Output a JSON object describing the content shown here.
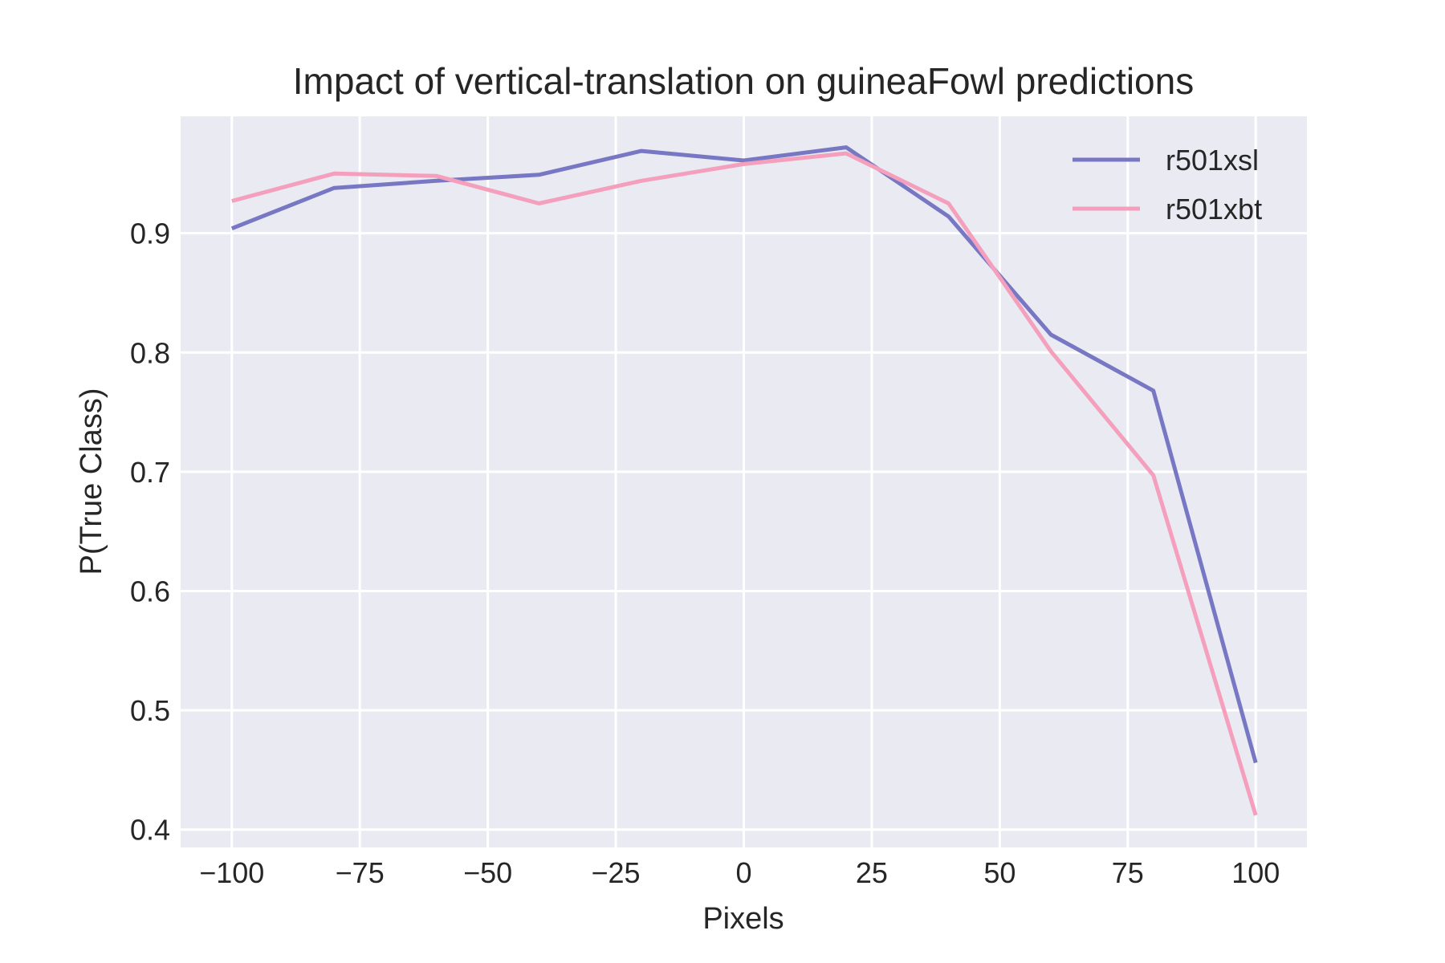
{
  "chart_data": {
    "type": "line",
    "title": "Impact of vertical-translation on guineaFowl predictions",
    "xlabel": "Pixels",
    "ylabel": "P(True Class)",
    "x": [
      -100,
      -80,
      -60,
      -40,
      -20,
      0,
      20,
      40,
      60,
      80,
      100
    ],
    "xlim": [
      -110,
      110
    ],
    "ylim": [
      0.385,
      0.998
    ],
    "xticks": [
      -100,
      -75,
      -50,
      -25,
      0,
      25,
      50,
      75,
      100
    ],
    "xtick_labels": [
      "−100",
      "−75",
      "−50",
      "−25",
      "0",
      "25",
      "50",
      "75",
      "100"
    ],
    "yticks": [
      0.4,
      0.5,
      0.6,
      0.7,
      0.8,
      0.9
    ],
    "ytick_labels": [
      "0.4",
      "0.5",
      "0.6",
      "0.7",
      "0.8",
      "0.9"
    ],
    "grid": true,
    "legend_position": "top-right",
    "background_color": "#eaeaf2",
    "grid_color": "#ffffff",
    "series": [
      {
        "name": "r501xsl",
        "color": "#7777c4",
        "values": [
          0.904,
          0.938,
          0.944,
          0.949,
          0.969,
          0.961,
          0.972,
          0.914,
          0.815,
          0.768,
          0.456
        ]
      },
      {
        "name": "r501xbt",
        "color": "#f49fbc",
        "values": [
          0.927,
          0.95,
          0.948,
          0.925,
          0.944,
          0.958,
          0.967,
          0.925,
          0.801,
          0.697,
          0.412
        ]
      }
    ]
  }
}
